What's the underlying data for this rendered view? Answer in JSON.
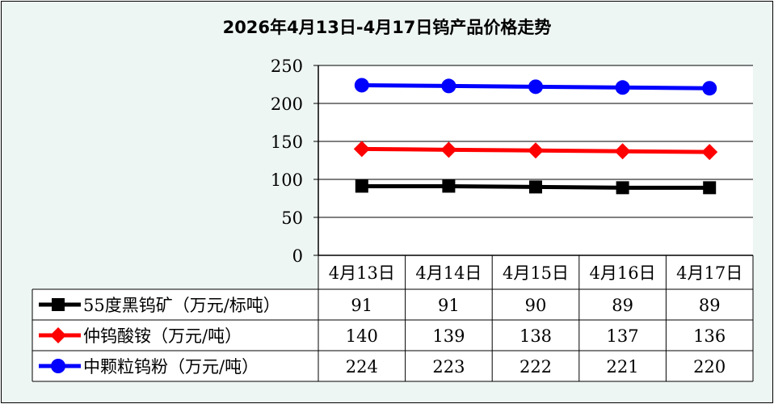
{
  "chart_data": {
    "type": "line",
    "title": "2026年4月13日-4月17日钨产品价格走势",
    "categories": [
      "4月13日",
      "4月14日",
      "4月15日",
      "4月16日",
      "4月17日"
    ],
    "ylim": [
      0,
      250
    ],
    "yticks": [
      0,
      50,
      100,
      150,
      200,
      250
    ],
    "grid": true,
    "legend": "data table below chart",
    "series": [
      {
        "name": "55度黑钨矿（万元/标吨）",
        "values": [
          91,
          91,
          90,
          89,
          89
        ],
        "color": "#000000",
        "marker": "square"
      },
      {
        "name": "仲钨酸铵（万元/吨）",
        "values": [
          140,
          139,
          138,
          137,
          136
        ],
        "color": "#ff0000",
        "marker": "diamond"
      },
      {
        "name": "中颗粒钨粉（万元/吨）",
        "values": [
          224,
          223,
          222,
          221,
          220
        ],
        "color": "#0000ff",
        "marker": "circle"
      }
    ]
  }
}
